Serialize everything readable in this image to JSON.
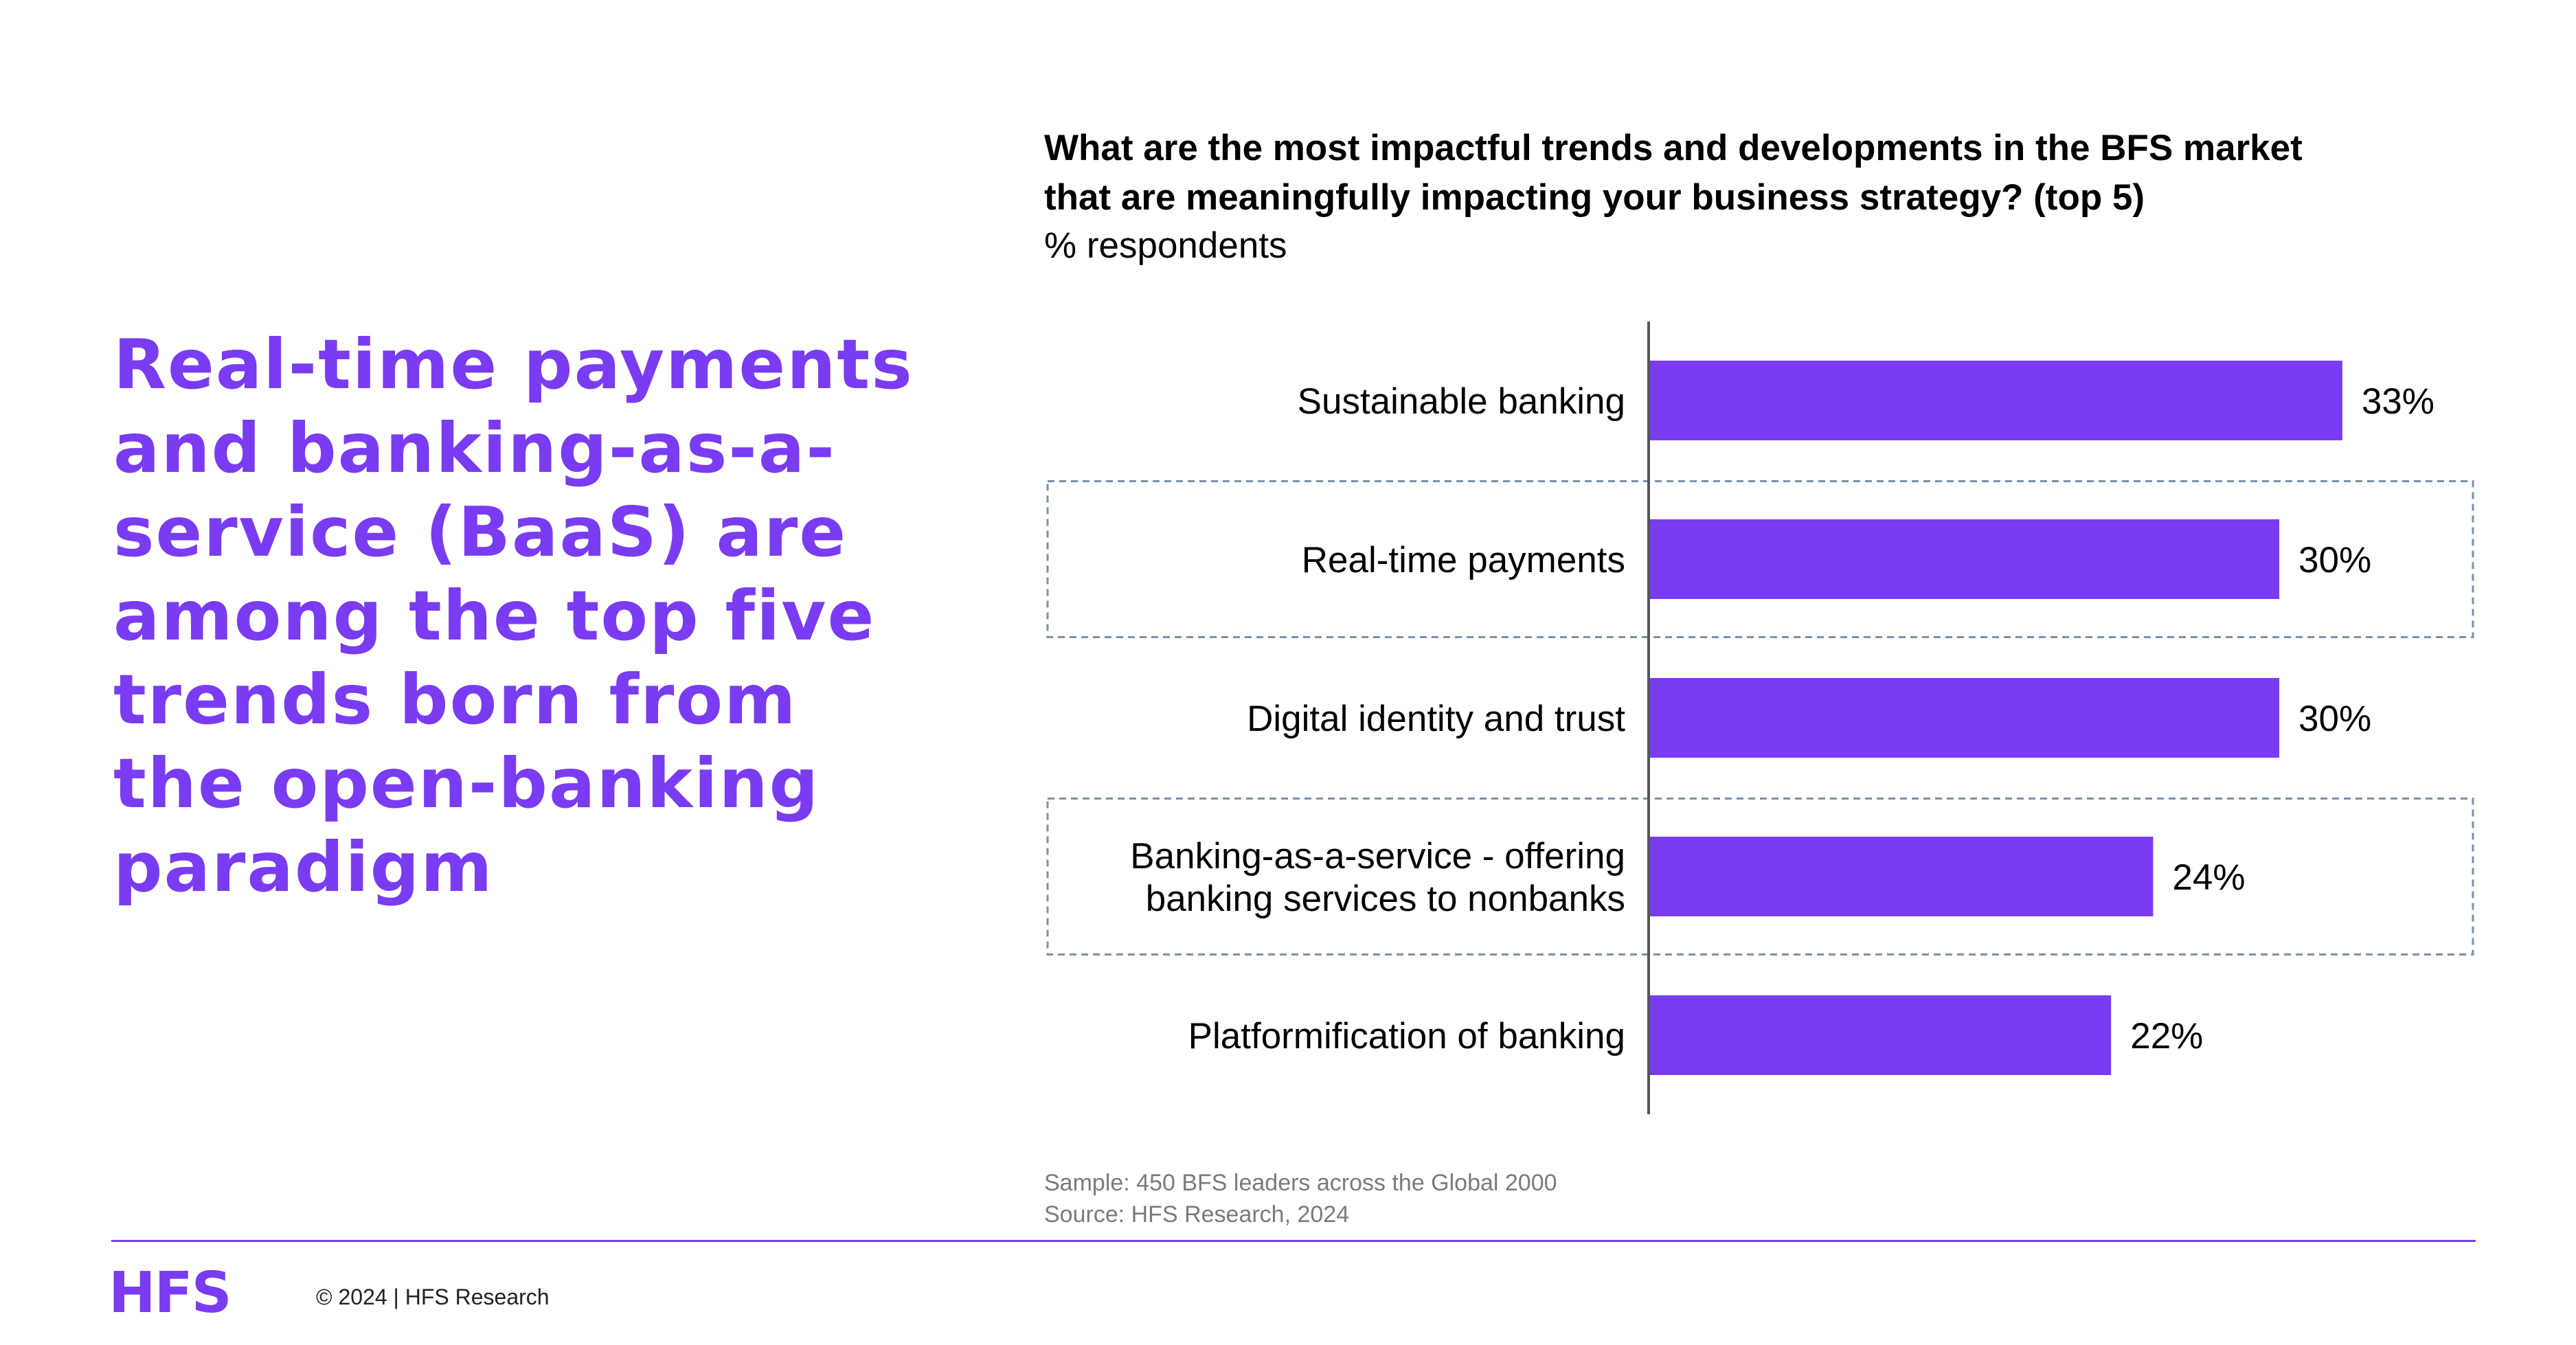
{
  "headline": "Real-time payments and banking-as-a-service (BaaS) are among the top five trends born from the open-banking paradigm",
  "colors": {
    "accent": "#7A3CF2",
    "bar": "#7A3CF2",
    "highlight_border": "#7a90a8",
    "axis": "#555555"
  },
  "chart_data": {
    "type": "bar",
    "orientation": "horizontal",
    "title": "What are the most impactful trends and developments in the BFS market\nthat are meaningfully impacting your business strategy? (top 5)",
    "subtitle": "% respondents",
    "categories": [
      [
        "Sustainable banking"
      ],
      [
        "Real-time payments"
      ],
      [
        "Digital identity and trust"
      ],
      [
        "Banking-as-a-service - offering",
        "banking services to nonbanks"
      ],
      [
        "Platformification of banking"
      ]
    ],
    "values": [
      33,
      30,
      30,
      24,
      22
    ],
    "value_labels": [
      "33%",
      "30%",
      "30%",
      "24%",
      "22%"
    ],
    "highlighted": [
      false,
      true,
      false,
      true,
      false
    ],
    "xlim": [
      0,
      40
    ],
    "grid": false,
    "legend": "none"
  },
  "notes": {
    "sample": "Sample: 450 BFS leaders across the Global 2000",
    "source": "Source: HFS Research, 2024"
  },
  "footer": {
    "logo": "HFS",
    "copyright": "© 2024 | HFS Research"
  }
}
